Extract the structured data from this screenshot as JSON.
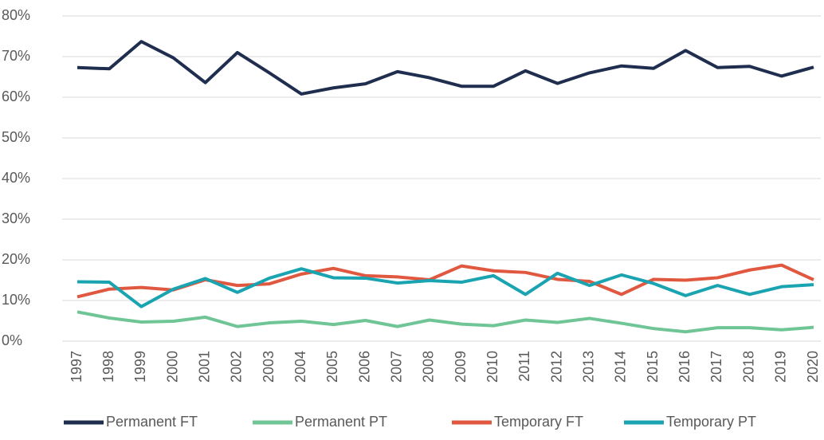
{
  "chart_data": {
    "type": "line",
    "categories": [
      "1997",
      "1998",
      "1999",
      "2000",
      "2001",
      "2002",
      "2003",
      "2004",
      "2005",
      "2006",
      "2007",
      "2008",
      "2009",
      "2010",
      "2011",
      "2012",
      "2013",
      "2014",
      "2015",
      "2016",
      "2017",
      "2018",
      "2019",
      "2020"
    ],
    "series": [
      {
        "name": "Permanent FT",
        "color": "#1f2e4e",
        "values": [
          67.3,
          67,
          73.7,
          69.7,
          63.6,
          71,
          66,
          60.8,
          62.3,
          63.3,
          66.3,
          64.8,
          62.7,
          62.7,
          66.5,
          63.4,
          66,
          67.7,
          67.1,
          71.5,
          67.3,
          67.6,
          65.2,
          67.4
        ]
      },
      {
        "name": "Permanent PT",
        "color": "#6fc595",
        "values": [
          7.2,
          5.7,
          4.7,
          4.9,
          5.9,
          3.6,
          4.5,
          4.9,
          4.1,
          5.1,
          3.6,
          5.2,
          4.2,
          3.8,
          5.2,
          4.6,
          5.6,
          4.4,
          3.1,
          2.3,
          3.3,
          3.3,
          2.8,
          3.4
        ]
      },
      {
        "name": "Temporary FT",
        "color": "#e0583f",
        "values": [
          10.9,
          12.8,
          13.2,
          12.6,
          15.1,
          13.7,
          14.1,
          16.5,
          17.9,
          16.1,
          15.8,
          15.1,
          18.5,
          17.3,
          16.9,
          15.2,
          14.7,
          11.5,
          15.2,
          15,
          15.6,
          17.5,
          18.7,
          15.1
        ]
      },
      {
        "name": "Temporary PT",
        "color": "#1aa3b0",
        "values": [
          14.6,
          14.5,
          8.5,
          12.8,
          15.4,
          12,
          15.5,
          17.8,
          15.6,
          15.5,
          14.3,
          14.9,
          14.5,
          16.1,
          11.5,
          16.7,
          13.7,
          16.3,
          14.2,
          11.2,
          13.7,
          11.5,
          13.4,
          13.9
        ]
      }
    ],
    "ylim": [
      0,
      80
    ],
    "yticks": [
      {
        "value": 0,
        "label": "0%"
      },
      {
        "value": 10,
        "label": "10%"
      },
      {
        "value": 20,
        "label": "20%"
      },
      {
        "value": 30,
        "label": "30%"
      },
      {
        "value": 40,
        "label": "40%"
      },
      {
        "value": 50,
        "label": "50%"
      },
      {
        "value": 60,
        "label": "60%"
      },
      {
        "value": 70,
        "label": "70%"
      },
      {
        "value": 80,
        "label": "80%"
      }
    ],
    "grid": true,
    "legend": "bottom"
  }
}
